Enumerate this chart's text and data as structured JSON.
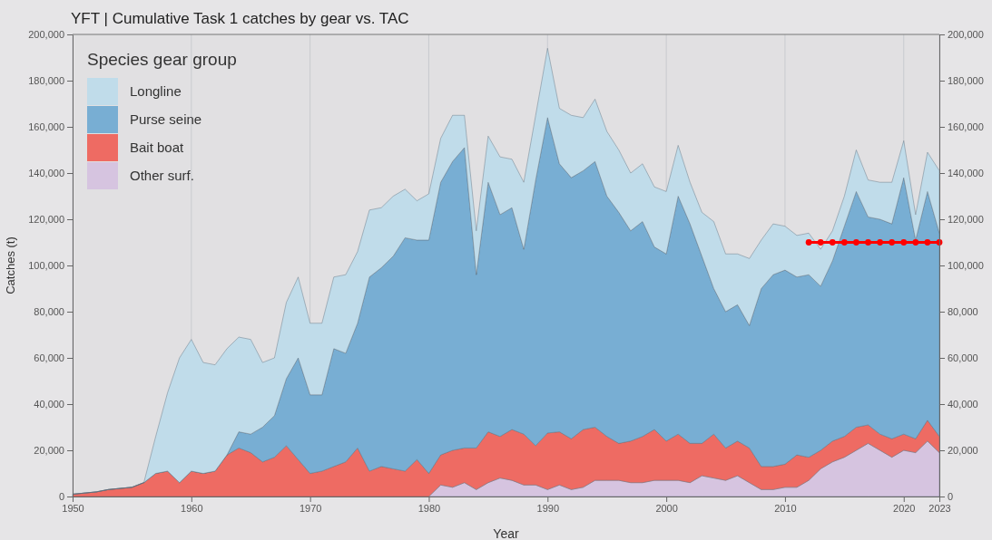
{
  "chart_data": {
    "type": "area",
    "stacked": true,
    "title": "YFT | Cumulative Task 1 catches by gear vs. TAC",
    "xlabel": "Year",
    "ylabel": "Catches (t)",
    "legend_title": "Species gear group",
    "legend": "top left",
    "grid": "x",
    "x": [
      1950,
      1951,
      1952,
      1953,
      1954,
      1955,
      1956,
      1957,
      1958,
      1959,
      1960,
      1961,
      1962,
      1963,
      1964,
      1965,
      1966,
      1967,
      1968,
      1969,
      1970,
      1971,
      1972,
      1973,
      1974,
      1975,
      1976,
      1977,
      1978,
      1979,
      1980,
      1981,
      1982,
      1983,
      1984,
      1985,
      1986,
      1987,
      1988,
      1989,
      1990,
      1991,
      1992,
      1993,
      1994,
      1995,
      1996,
      1997,
      1998,
      1999,
      2000,
      2001,
      2002,
      2003,
      2004,
      2005,
      2006,
      2007,
      2008,
      2009,
      2010,
      2011,
      2012,
      2013,
      2014,
      2015,
      2016,
      2017,
      2018,
      2019,
      2020,
      2021,
      2022,
      2023
    ],
    "xlim": [
      1950,
      2023
    ],
    "xticks": [
      1950,
      1960,
      1970,
      1980,
      1990,
      2000,
      2010,
      2020,
      2023
    ],
    "ylim": [
      0,
      200000
    ],
    "yticks": [
      {
        "value": 0,
        "label": "0"
      },
      {
        "value": 20000,
        "label": "20,000"
      },
      {
        "value": 40000,
        "label": "40,000"
      },
      {
        "value": 60000,
        "label": "60,000"
      },
      {
        "value": 80000,
        "label": "80,000"
      },
      {
        "value": 100000,
        "label": "100,000"
      },
      {
        "value": 120000,
        "label": "120,000"
      },
      {
        "value": 140000,
        "label": "140,000"
      },
      {
        "value": 160000,
        "label": "160,000"
      },
      {
        "value": 180000,
        "label": "180,000"
      },
      {
        "value": 200000,
        "label": "200,000"
      }
    ],
    "y2lim": [
      0,
      200000
    ],
    "y2ticks": [
      {
        "value": 0,
        "label": "0"
      },
      {
        "value": 20000,
        "label": "20,000"
      },
      {
        "value": 40000,
        "label": "40,000"
      },
      {
        "value": 60000,
        "label": "60,000"
      },
      {
        "value": 80000,
        "label": "80,000"
      },
      {
        "value": 100000,
        "label": "100,000"
      },
      {
        "value": 120000,
        "label": "120,000"
      },
      {
        "value": 140000,
        "label": "140,000"
      },
      {
        "value": 160000,
        "label": "160,000"
      },
      {
        "value": 180000,
        "label": "180,000"
      },
      {
        "value": 200000,
        "label": "200,000"
      }
    ],
    "series": [
      {
        "name": "Other surf.",
        "color": "#d6c4e0",
        "values": [
          0,
          0,
          0,
          0,
          0,
          0,
          0,
          0,
          0,
          0,
          0,
          0,
          0,
          0,
          0,
          0,
          0,
          0,
          0,
          0,
          0,
          0,
          0,
          0,
          0,
          0,
          0,
          0,
          0,
          0,
          0,
          5000,
          4000,
          6000,
          3000,
          6000,
          8000,
          7000,
          5000,
          5000,
          3000,
          5000,
          3000,
          4000,
          7000,
          7000,
          7000,
          6000,
          6000,
          7000,
          7000,
          7000,
          6000,
          9000,
          8000,
          7000,
          9000,
          6000,
          3000,
          3000,
          4000,
          4000,
          7000,
          12000,
          15000,
          17000,
          20000,
          23000,
          20000,
          17000,
          20000,
          19000,
          24000,
          19000
        ]
      },
      {
        "name": "Bait boat",
        "color": "#ee6b63",
        "values": [
          1000,
          1500,
          2000,
          3000,
          3500,
          4000,
          6000,
          10000,
          11000,
          6000,
          11000,
          10000,
          11000,
          18000,
          21000,
          19000,
          15000,
          17000,
          22000,
          16000,
          10000,
          11000,
          13000,
          15000,
          21000,
          11000,
          13000,
          12000,
          11000,
          16000,
          10000,
          13000,
          16000,
          15000,
          18000,
          22000,
          18000,
          22000,
          22000,
          17000,
          24500,
          23000,
          22000,
          25000,
          23000,
          19000,
          16000,
          18000,
          20000,
          22000,
          17000,
          20000,
          17000,
          14000,
          19000,
          14000,
          15000,
          15000,
          10000,
          10000,
          10000,
          14000,
          10000,
          8000,
          9000,
          9000,
          10000,
          8000,
          7000,
          8000,
          7000,
          6000,
          9000,
          7000
        ]
      },
      {
        "name": "Purse seine",
        "color": "#78aed3",
        "values": [
          0,
          0,
          0,
          0,
          0,
          0,
          0,
          0,
          0,
          0,
          0,
          0,
          0,
          0,
          7000,
          8000,
          15000,
          18000,
          29000,
          44000,
          34000,
          33000,
          51000,
          47000,
          54000,
          84000,
          86000,
          92000,
          101000,
          95000,
          101000,
          118000,
          125000,
          130000,
          75000,
          108000,
          96000,
          96000,
          80000,
          115000,
          136500,
          116000,
          113000,
          112000,
          115000,
          104000,
          100000,
          91000,
          93000,
          79000,
          81000,
          103000,
          95000,
          81000,
          63000,
          59000,
          59000,
          53000,
          77000,
          83000,
          84000,
          77000,
          79000,
          71000,
          78000,
          91000,
          102000,
          90000,
          93000,
          93000,
          111000,
          86000,
          99000,
          88000
        ]
      },
      {
        "name": "Longline",
        "color": "#c0dcea",
        "values": [
          0,
          0,
          0,
          0,
          0,
          0,
          0,
          16000,
          34000,
          54000,
          57000,
          48000,
          46000,
          46000,
          41000,
          41000,
          28000,
          25000,
          33000,
          35000,
          31000,
          31000,
          31000,
          34000,
          31000,
          29000,
          26000,
          26000,
          21000,
          17000,
          20000,
          19000,
          20000,
          14000,
          19000,
          20000,
          25000,
          21000,
          29000,
          28000,
          30000,
          24000,
          27000,
          23000,
          27000,
          28000,
          27000,
          25000,
          25000,
          26000,
          27000,
          22000,
          18000,
          19000,
          29000,
          25000,
          22000,
          29000,
          21000,
          22000,
          19000,
          18000,
          18000,
          16000,
          13000,
          13000,
          18000,
          16000,
          16000,
          18000,
          16000,
          11000,
          17000,
          27000
        ]
      },
      {
        "type": "line",
        "color": "#ff0000",
        "marker": "circle",
        "x": [
          2012,
          2013,
          2014,
          2015,
          2016,
          2017,
          2018,
          2019,
          2020,
          2021,
          2022,
          2023
        ],
        "values": [
          110000,
          110000,
          110000,
          110000,
          110000,
          110000,
          110000,
          110000,
          110000,
          110000,
          110000,
          110000
        ]
      }
    ]
  }
}
